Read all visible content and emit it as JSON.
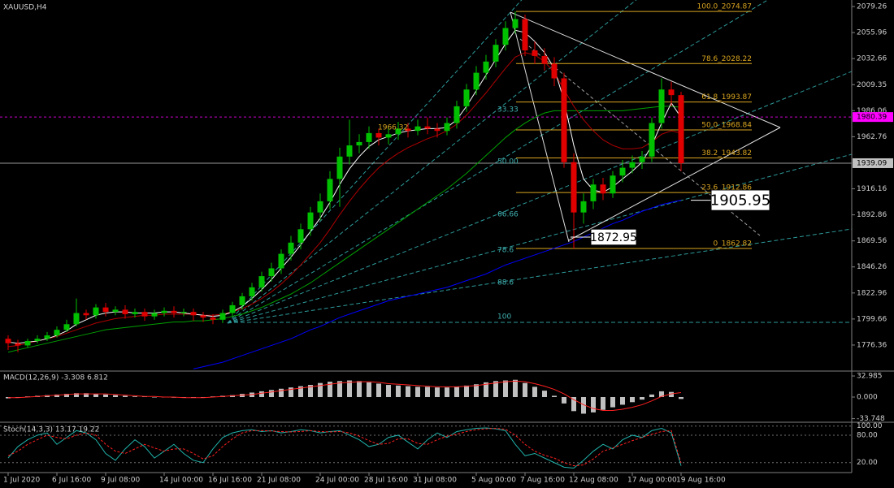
{
  "chart_data": {
    "type": "candlestick",
    "title": "XAUUSD,H4",
    "categories": [
      "1 Jul 2020",
      null,
      null,
      null,
      null,
      "6 Jul 16:00",
      null,
      null,
      null,
      null,
      "9 Jul 08:00",
      null,
      null,
      null,
      null,
      null,
      "14 Jul 00:00",
      null,
      null,
      null,
      null,
      "16 Jul 16:00",
      null,
      null,
      null,
      null,
      "21 Jul 08:00",
      null,
      null,
      null,
      null,
      null,
      "24 Jul 00:00",
      null,
      null,
      null,
      null,
      "28 Jul 16:00",
      null,
      null,
      null,
      null,
      "31 Jul 08:00",
      null,
      null,
      null,
      null,
      null,
      "5 Aug 00:00",
      null,
      null,
      null,
      null,
      "7 Aug 16:00",
      null,
      null,
      null,
      null,
      "12 Aug 08:00",
      null,
      null,
      null,
      null,
      null,
      "17 Aug 00:00",
      null,
      null,
      null,
      null,
      "19 Aug 16:00"
    ],
    "candles": {
      "bull_color": "#00c000",
      "bear_color": "#e00000",
      "open": [
        1782,
        1778,
        1776,
        1780,
        1782,
        1785,
        1790,
        1795,
        1805,
        1803,
        1810,
        1806,
        1808,
        1804,
        1806,
        1802,
        1805,
        1807,
        1805,
        1806,
        1803,
        1801,
        1799,
        1805,
        1812,
        1820,
        1828,
        1838,
        1845,
        1858,
        1868,
        1880,
        1895,
        1905,
        1925,
        1945,
        1955,
        1958,
        1966,
        1962,
        1965,
        1970,
        1968,
        1972,
        1970,
        1968,
        1975,
        1990,
        2005,
        2020,
        2030,
        2045,
        2060,
        2068,
        2040,
        2035,
        2028,
        2015,
        1940,
        1895,
        1905,
        1920,
        1912,
        1928,
        1935,
        1940,
        1945,
        1975,
        2005,
        2000
      ],
      "high": [
        1785,
        1781,
        1782,
        1785,
        1788,
        1793,
        1799,
        1818,
        1808,
        1813,
        1814,
        1811,
        1812,
        1809,
        1809,
        1808,
        1810,
        1811,
        1809,
        1809,
        1806,
        1804,
        1808,
        1815,
        1823,
        1832,
        1842,
        1850,
        1862,
        1874,
        1885,
        1900,
        1912,
        1932,
        1953,
        1978,
        1965,
        1972,
        1970,
        1972,
        1976,
        1975,
        1978,
        1980,
        1975,
        1980,
        1995,
        2010,
        2026,
        2036,
        2050,
        2066,
        2074.87,
        2072,
        2048,
        2042,
        2034,
        2020,
        1948,
        1912,
        1925,
        1926,
        1932,
        1942,
        1946,
        1950,
        1980,
        2015,
        2012,
        2003
      ],
      "low": [
        1772,
        1770,
        1774,
        1778,
        1780,
        1783,
        1788,
        1793,
        1799,
        1800,
        1802,
        1803,
        1800,
        1801,
        1798,
        1799,
        1802,
        1801,
        1802,
        1798,
        1797,
        1795,
        1796,
        1802,
        1808,
        1816,
        1824,
        1833,
        1840,
        1852,
        1862,
        1874,
        1888,
        1898,
        1900,
        1938,
        1948,
        1952,
        1955,
        1956,
        1960,
        1962,
        1964,
        1965,
        1962,
        1964,
        1970,
        1985,
        2000,
        2014,
        2025,
        2040,
        2055,
        2035,
        2028,
        2022,
        2008,
        1935,
        1862.82,
        1885,
        1898,
        1906,
        1908,
        1922,
        1930,
        1934,
        1940,
        1970,
        1990,
        1932
      ],
      "close": [
        1778,
        1776,
        1780,
        1782,
        1785,
        1790,
        1795,
        1805,
        1803,
        1810,
        1806,
        1808,
        1804,
        1806,
        1802,
        1805,
        1807,
        1805,
        1806,
        1803,
        1801,
        1799,
        1805,
        1812,
        1820,
        1828,
        1838,
        1845,
        1858,
        1868,
        1880,
        1895,
        1905,
        1925,
        1945,
        1955,
        1958,
        1966,
        1962,
        1965,
        1970,
        1968,
        1972,
        1970,
        1968,
        1975,
        1990,
        2005,
        2020,
        2030,
        2045,
        2060,
        2068,
        2040,
        2035,
        2028,
        2015,
        1940,
        1895,
        1905,
        1920,
        1912,
        1928,
        1935,
        1940,
        1945,
        1975,
        2005,
        2000,
        1939.09
      ]
    },
    "moving_averages": [
      {
        "color": "#0000ff",
        "values": [
          null,
          null,
          null,
          null,
          null,
          null,
          null,
          null,
          null,
          null,
          null,
          null,
          null,
          null,
          null,
          null,
          null,
          null,
          null,
          1755,
          1757,
          1759,
          1761,
          1764,
          1767,
          1770,
          1773,
          1776,
          1779,
          1782,
          1786,
          1790,
          1793,
          1797,
          1801,
          1804,
          1807,
          1810,
          1813,
          1816,
          1818,
          1820,
          1822,
          1824,
          1826,
          1828,
          1831,
          1834,
          1837,
          1840,
          1844,
          1848,
          1851,
          1854,
          1857,
          1860,
          1863,
          1866,
          1869,
          1873,
          1877,
          1881,
          1885,
          1888,
          1892,
          1896,
          1899,
          1902,
          1904,
          1906
        ]
      },
      {
        "color": "#00a000",
        "values": [
          1770,
          1772,
          1774,
          1776,
          1778,
          1780,
          1782,
          1784,
          1786,
          1788,
          1790,
          1791,
          1792,
          1793,
          1794,
          1795,
          1796,
          1797,
          1797,
          1798,
          1798,
          1799,
          1800,
          1802,
          1804,
          1807,
          1810,
          1814,
          1818,
          1822,
          1827,
          1832,
          1838,
          1844,
          1850,
          1856,
          1862,
          1868,
          1874,
          1880,
          1886,
          1892,
          1898,
          1904,
          1910,
          1916,
          1923,
          1930,
          1938,
          1946,
          1954,
          1962,
          1969,
          1975,
          1980,
          1984,
          1986,
          1986,
          1986,
          1986,
          1986,
          1986,
          1986,
          1986,
          1987,
          1988,
          1989,
          1990,
          1990,
          1989
        ]
      },
      {
        "color": "#b00000",
        "values": [
          1775,
          1776,
          1778,
          1780,
          1782,
          1784,
          1787,
          1790,
          1793,
          1796,
          1798,
          1800,
          1801,
          1802,
          1803,
          1803,
          1804,
          1804,
          1804,
          1804,
          1803,
          1803,
          1804,
          1806,
          1809,
          1813,
          1818,
          1824,
          1831,
          1839,
          1848,
          1858,
          1868,
          1880,
          1893,
          1905,
          1916,
          1926,
          1935,
          1942,
          1948,
          1953,
          1957,
          1961,
          1964,
          1968,
          1974,
          1982,
          1992,
          2002,
          2013,
          2024,
          2034,
          2038,
          2036,
          2030,
          2020,
          2005,
          1990,
          1978,
          1968,
          1960,
          1955,
          1952,
          1952,
          1953,
          1958,
          1965,
          1968,
          1966
        ]
      },
      {
        "color": "#ffffff",
        "values": [
          1779,
          1778,
          1779,
          1780,
          1782,
          1785,
          1789,
          1795,
          1799,
          1803,
          1805,
          1806,
          1806,
          1805,
          1805,
          1805,
          1806,
          1806,
          1805,
          1804,
          1803,
          1802,
          1803,
          1806,
          1811,
          1818,
          1826,
          1835,
          1845,
          1855,
          1866,
          1878,
          1890,
          1904,
          1920,
          1934,
          1945,
          1954,
          1960,
          1963,
          1966,
          1968,
          1969,
          1970,
          1970,
          1971,
          1978,
          1990,
          2004,
          2018,
          2032,
          2046,
          2058,
          2056,
          2048,
          2038,
          2024,
          1995,
          1955,
          1925,
          1915,
          1913,
          1918,
          1925,
          1932,
          1940,
          1955,
          1975,
          1993,
          1980
        ]
      }
    ],
    "ylim": [
      1753.8,
      2085.1
    ],
    "yticks": [
      2079.26,
      2055.96,
      2032.66,
      2009.35,
      1986.06,
      1962.76,
      1916.16,
      1892.86,
      1869.56,
      1846.26,
      1822.96,
      1799.66,
      1776.36
    ],
    "hlines": [
      {
        "value": 1980.39,
        "color": "#ff00ff"
      },
      {
        "value": 1939.09,
        "color": "#c0c0c0"
      }
    ],
    "fib_levels": [
      {
        "value": 2074.87,
        "label": "100.0_2074.87"
      },
      {
        "value": 2028.22,
        "label": "78.6_2028.22"
      },
      {
        "value": 1993.87,
        "label": "61.8_1993.87"
      },
      {
        "value": 1968.84,
        "label": "50.0_1968.84"
      },
      {
        "value": 1943.82,
        "label": "38.2_1943.82"
      },
      {
        "value": 1912.86,
        "label": "23.6_1912.86"
      },
      {
        "value": 1862.82,
        "label": "0_1862.82"
      }
    ],
    "fan_levels": [
      "33.33",
      "50.00",
      "66.66",
      "78.6",
      "88.6",
      "100"
    ],
    "marker_label": "1966.32",
    "price_callouts": [
      1905.95,
      1872.95
    ],
    "macd": {
      "title": "MACD(12,26,9) -3.308 6.812",
      "histogram": [
        -2,
        -1,
        1,
        2,
        3,
        4,
        5,
        6,
        6,
        5,
        4,
        3,
        2,
        1,
        1,
        0,
        0,
        -1,
        -1,
        -1,
        0,
        1,
        2,
        3,
        5,
        7,
        9,
        11,
        13,
        15,
        17,
        19,
        22,
        24,
        25,
        26,
        25,
        23,
        21,
        19,
        18,
        17,
        16,
        16,
        15,
        15,
        16,
        18,
        20,
        23,
        25,
        26,
        27,
        22,
        16,
        10,
        2,
        -10,
        -22,
        -26,
        -24,
        -20,
        -16,
        -12,
        -8,
        -4,
        4,
        9,
        8,
        -3
      ],
      "signal": [
        -1,
        -1,
        0,
        1,
        2,
        3,
        4,
        5,
        5,
        5,
        5,
        4,
        3,
        2,
        1,
        1,
        0,
        0,
        -1,
        -1,
        -1,
        0,
        1,
        2,
        3,
        4,
        6,
        8,
        10,
        12,
        14,
        16,
        18,
        20,
        22,
        23,
        24,
        24,
        23,
        21,
        20,
        19,
        18,
        17,
        16,
        16,
        16,
        17,
        18,
        20,
        22,
        24,
        25,
        24,
        21,
        17,
        12,
        5,
        -4,
        -12,
        -18,
        -21,
        -21,
        -19,
        -16,
        -12,
        -6,
        1,
        5,
        7
      ],
      "ylim": [
        -38.1,
        38.1
      ],
      "yticks": [
        32.985,
        {
          "value": 0,
          "label": "0.000"
        },
        -33.748
      ]
    },
    "stoch": {
      "title": "Stoch(14,3,3) 13.17 19.22",
      "main": [
        30,
        55,
        70,
        80,
        85,
        60,
        75,
        90,
        85,
        70,
        40,
        25,
        50,
        70,
        55,
        30,
        45,
        60,
        40,
        25,
        20,
        50,
        75,
        85,
        90,
        92,
        88,
        90,
        85,
        88,
        92,
        90,
        85,
        88,
        90,
        80,
        70,
        55,
        60,
        75,
        80,
        65,
        50,
        70,
        85,
        75,
        88,
        92,
        95,
        96,
        94,
        90,
        60,
        35,
        40,
        30,
        20,
        10,
        8,
        25,
        45,
        60,
        50,
        70,
        80,
        75,
        90,
        95,
        85,
        13.17
      ],
      "signal": [
        35,
        45,
        60,
        70,
        80,
        75,
        72,
        80,
        85,
        80,
        60,
        45,
        40,
        50,
        60,
        52,
        45,
        50,
        50,
        40,
        28,
        35,
        55,
        72,
        85,
        90,
        90,
        89,
        88,
        87,
        88,
        90,
        88,
        87,
        88,
        85,
        78,
        68,
        60,
        62,
        72,
        72,
        62,
        60,
        70,
        78,
        82,
        88,
        92,
        94,
        95,
        93,
        80,
        60,
        45,
        36,
        30,
        20,
        13,
        15,
        28,
        45,
        52,
        60,
        68,
        75,
        82,
        88,
        90,
        19.22
      ],
      "ylim": [
        0,
        104.8
      ],
      "yticks": [
        {
          "value": 100,
          "label": "100.00"
        },
        {
          "value": 80,
          "label": "80.00"
        },
        {
          "value": 20,
          "label": "20.00"
        }
      ]
    }
  }
}
